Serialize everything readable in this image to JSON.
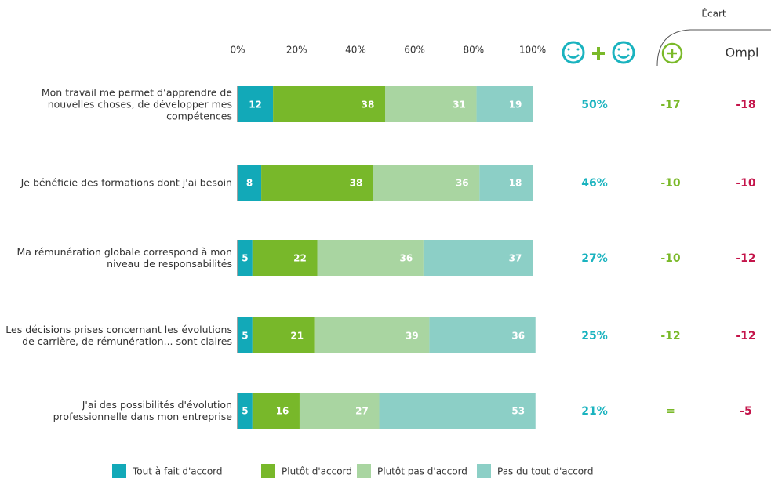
{
  "chart_data": {
    "type": "stacked_bar_horizontal",
    "categories": [
      "Mon travail me permet d’apprendre de nouvelles choses, de développer mes compétences",
      "Je bénéficie des formations dont j'ai besoin",
      "Ma rémunération globale correspond à mon niveau de responsabilités",
      "Les décisions prises concernant les évolutions de carrière, de rémunération... sont claires",
      "J'ai des possibilités d'évolution professionnelle dans mon entreprise"
    ],
    "series": [
      {
        "name": "Tout à fait d'accord",
        "color": "#12a9b8",
        "values": [
          12,
          8,
          5,
          5,
          5
        ]
      },
      {
        "name": "Plutôt d'accord",
        "color": "#78b82a",
        "values": [
          38,
          38,
          22,
          21,
          16
        ]
      },
      {
        "name": "Plutôt pas d'accord",
        "color": "#a9d5a1",
        "values": [
          31,
          36,
          36,
          39,
          27
        ]
      },
      {
        "name": "Pas du tout d'accord",
        "color": "#8ccfc6",
        "values": [
          19,
          18,
          37,
          36,
          53
        ]
      }
    ],
    "xlim": [
      0,
      100
    ],
    "xticks": [
      {
        "value": 0,
        "label": "0%"
      },
      {
        "value": 20,
        "label": "20%"
      },
      {
        "value": 40,
        "label": "40%"
      },
      {
        "value": 60,
        "label": "60%"
      },
      {
        "value": 80,
        "label": "80%"
      },
      {
        "value": 100,
        "label": "100%"
      }
    ],
    "gap_header": "Écart",
    "logo_text": "Ompl",
    "score_values": [
      50,
      46,
      27,
      25,
      21
    ],
    "score_labels": [
      "50%",
      "46%",
      "27%",
      "25%",
      "21%"
    ],
    "score_color": "#1ab3bf",
    "gap_plus_values": [
      -17,
      -10,
      -10,
      -12,
      0
    ],
    "gap_plus_labels": [
      "-17",
      "-10",
      "-10",
      "-12",
      "="
    ],
    "gap_plus_color": "#7ab929",
    "gap_ompl_values": [
      -18,
      -10,
      -12,
      -12,
      -5
    ],
    "gap_ompl_color": "#c4144a"
  }
}
